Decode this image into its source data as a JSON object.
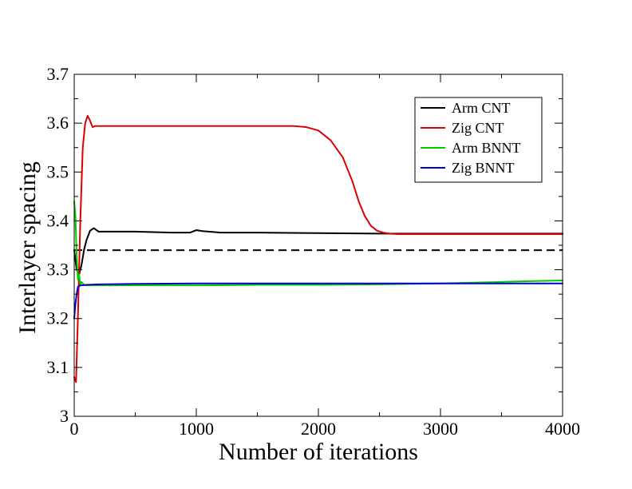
{
  "chart_data": {
    "type": "line",
    "title": "",
    "xlabel": "Number of iterations",
    "ylabel": "Interlayer spacing",
    "xlim": [
      0,
      4000
    ],
    "ylim": [
      3.0,
      3.7
    ],
    "xticks": [
      0,
      1000,
      2000,
      3000,
      4000
    ],
    "xtick_labels": [
      "0",
      "1000",
      "2000",
      "3000",
      "4000"
    ],
    "yticks": [
      3.0,
      3.1,
      3.2,
      3.3,
      3.4,
      3.5,
      3.6,
      3.7
    ],
    "ytick_labels": [
      "3",
      "3.1",
      "3.2",
      "3.3",
      "3.4",
      "3.5",
      "3.6",
      "3.7"
    ],
    "grid": false,
    "legend_position": "top-right",
    "reference_line": {
      "y": 3.34,
      "style": "dashed",
      "color": "#000000"
    },
    "series": [
      {
        "name": "Arm CNT",
        "color": "#000000",
        "x": [
          0,
          20,
          40,
          60,
          80,
          100,
          130,
          160,
          200,
          300,
          500,
          800,
          950,
          1000,
          1050,
          1200,
          1500,
          2000,
          2500,
          3000,
          4000
        ],
        "y": [
          3.34,
          3.3,
          3.29,
          3.31,
          3.34,
          3.36,
          3.38,
          3.385,
          3.378,
          3.378,
          3.378,
          3.376,
          3.376,
          3.381,
          3.379,
          3.376,
          3.376,
          3.375,
          3.374,
          3.374,
          3.374
        ]
      },
      {
        "name": "Zig CNT",
        "color": "#dd0000",
        "x": [
          0,
          15,
          30,
          50,
          70,
          90,
          110,
          130,
          150,
          170,
          200,
          400,
          800,
          1200,
          1600,
          1800,
          1900,
          2000,
          2100,
          2200,
          2280,
          2330,
          2380,
          2430,
          2480,
          2530,
          2580,
          2650,
          2800,
          3000,
          4000
        ],
        "y": [
          3.08,
          3.07,
          3.2,
          3.4,
          3.55,
          3.6,
          3.615,
          3.605,
          3.592,
          3.594,
          3.594,
          3.594,
          3.594,
          3.594,
          3.594,
          3.594,
          3.592,
          3.585,
          3.565,
          3.53,
          3.48,
          3.44,
          3.41,
          3.39,
          3.38,
          3.376,
          3.374,
          3.373,
          3.373,
          3.373,
          3.373
        ]
      },
      {
        "name": "Arm BNNT",
        "color": "#00cc00",
        "x": [
          0,
          10,
          20,
          30,
          40,
          50,
          60,
          80,
          100,
          150,
          200,
          500,
          1000,
          1500,
          2000,
          2500,
          3000,
          3500,
          3800,
          4000
        ],
        "y": [
          3.44,
          3.41,
          3.33,
          3.28,
          3.29,
          3.27,
          3.275,
          3.269,
          3.268,
          3.268,
          3.268,
          3.268,
          3.268,
          3.269,
          3.269,
          3.27,
          3.272,
          3.275,
          3.277,
          3.278
        ]
      },
      {
        "name": "Zig BNNT",
        "color": "#0000cc",
        "x": [
          0,
          10,
          20,
          30,
          50,
          100,
          200,
          500,
          1000,
          2000,
          3000,
          4000
        ],
        "y": [
          3.2,
          3.23,
          3.25,
          3.265,
          3.268,
          3.269,
          3.27,
          3.271,
          3.272,
          3.272,
          3.272,
          3.272
        ]
      }
    ]
  }
}
